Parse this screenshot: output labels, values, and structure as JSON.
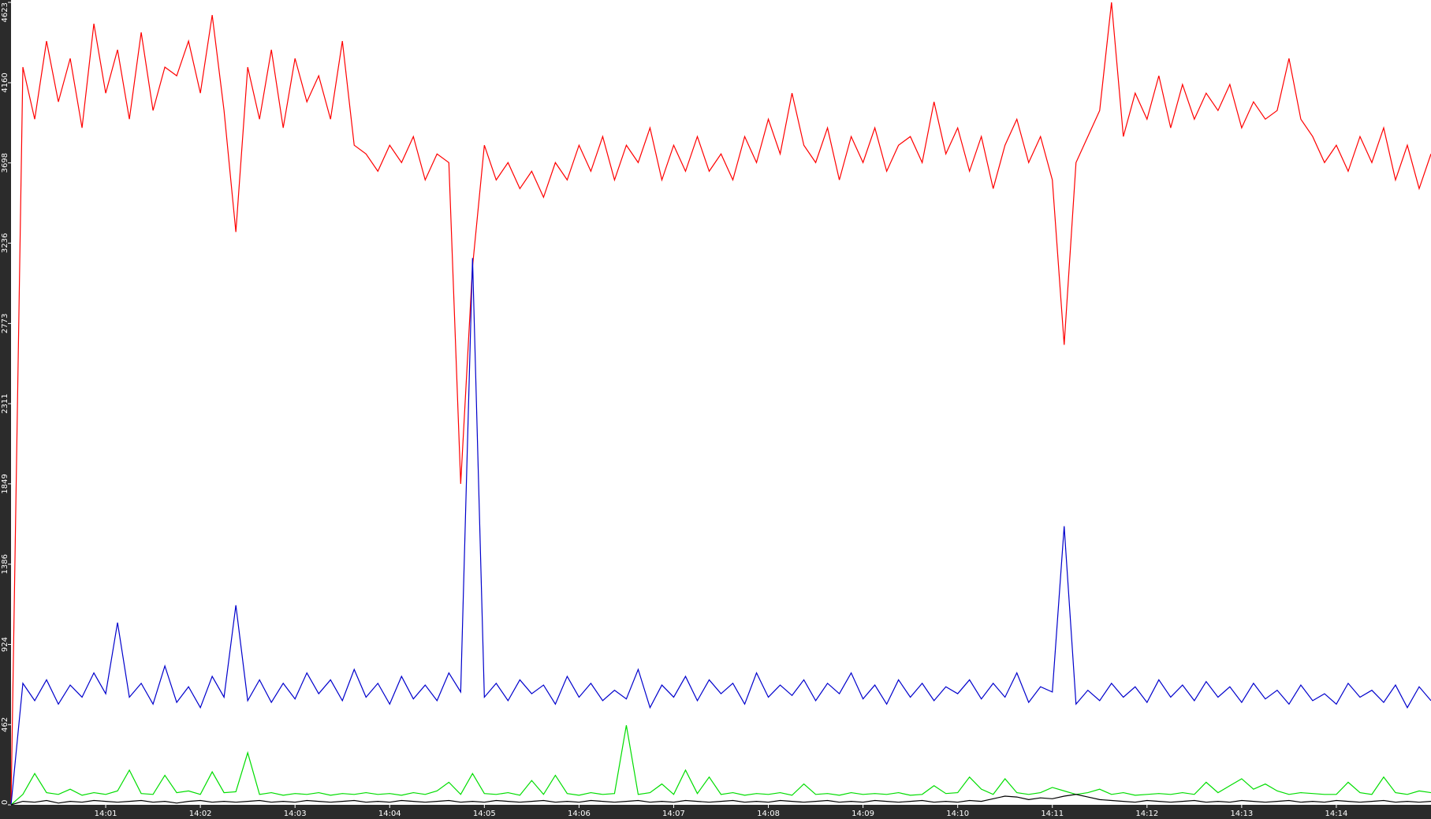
{
  "chart_data": {
    "type": "line",
    "x": [
      0,
      0.125,
      0.25,
      0.375,
      0.5,
      0.625,
      0.75,
      0.875,
      1,
      1.125,
      1.25,
      1.375,
      1.5,
      1.625,
      1.75,
      1.875,
      2,
      2.125,
      2.25,
      2.375,
      2.5,
      2.625,
      2.75,
      2.875,
      3,
      3.125,
      3.25,
      3.375,
      3.5,
      3.625,
      3.75,
      3.875,
      4,
      4.125,
      4.25,
      4.375,
      4.5,
      4.625,
      4.75,
      4.875,
      5,
      5.125,
      5.25,
      5.375,
      5.5,
      5.625,
      5.75,
      5.875,
      6,
      6.125,
      6.25,
      6.375,
      6.5,
      6.625,
      6.75,
      6.875,
      7,
      7.125,
      7.25,
      7.375,
      7.5,
      7.625,
      7.75,
      7.875,
      8,
      8.125,
      8.25,
      8.375,
      8.5,
      8.625,
      8.75,
      8.875,
      9,
      9.125,
      9.25,
      9.375,
      9.5,
      9.625,
      9.75,
      9.875,
      10,
      10.125,
      10.25,
      10.375,
      10.5,
      10.625,
      10.75,
      10.875,
      11,
      11.125,
      11.25,
      11.375,
      11.5,
      11.625,
      11.75,
      11.875,
      12,
      12.125,
      12.25,
      12.375,
      12.5,
      12.625,
      12.75,
      12.875,
      13,
      13.125,
      13.25,
      13.375,
      13.5,
      13.625,
      13.75,
      13.875,
      14,
      14.125,
      14.25,
      14.375,
      14.5,
      14.625,
      14.75,
      14.875,
      15
    ],
    "series": [
      {
        "color": "#ff0000",
        "values": [
          0,
          4250,
          3950,
          4400,
          4050,
          4300,
          3900,
          4500,
          4100,
          4350,
          3950,
          4450,
          4000,
          4250,
          4200,
          4400,
          4100,
          4550,
          4000,
          3300,
          4250,
          3950,
          4350,
          3900,
          4300,
          4050,
          4200,
          3950,
          4400,
          3800,
          3750,
          3650,
          3800,
          3700,
          3850,
          3600,
          3750,
          3700,
          1849,
          3100,
          3800,
          3600,
          3700,
          3550,
          3650,
          3500,
          3700,
          3600,
          3800,
          3650,
          3850,
          3600,
          3800,
          3700,
          3900,
          3600,
          3800,
          3650,
          3850,
          3650,
          3750,
          3600,
          3850,
          3700,
          3950,
          3750,
          4100,
          3800,
          3700,
          3900,
          3600,
          3850,
          3700,
          3900,
          3650,
          3800,
          3850,
          3700,
          4050,
          3750,
          3900,
          3650,
          3850,
          3550,
          3800,
          3950,
          3700,
          3850,
          3600,
          2650,
          3700,
          3850,
          4000,
          4623,
          3850,
          4100,
          3950,
          4200,
          3900,
          4150,
          3950,
          4100,
          4000,
          4150,
          3900,
          4050,
          3950,
          4000,
          4300,
          3950,
          3850,
          3700,
          3800,
          3650,
          3850,
          3700,
          3900,
          3600,
          3800,
          3550,
          3750
        ]
      },
      {
        "color": "#0000cc",
        "values": [
          0,
          700,
          600,
          720,
          580,
          690,
          620,
          760,
          640,
          1050,
          620,
          700,
          580,
          800,
          590,
          680,
          560,
          740,
          620,
          1150,
          600,
          720,
          590,
          700,
          610,
          760,
          640,
          720,
          600,
          780,
          620,
          700,
          580,
          740,
          610,
          690,
          600,
          760,
          650,
          3150,
          620,
          700,
          600,
          720,
          640,
          690,
          580,
          740,
          620,
          700,
          600,
          660,
          610,
          780,
          560,
          690,
          620,
          740,
          600,
          720,
          640,
          700,
          580,
          760,
          620,
          690,
          630,
          720,
          600,
          700,
          640,
          760,
          610,
          690,
          580,
          720,
          620,
          700,
          600,
          680,
          640,
          720,
          610,
          700,
          620,
          760,
          590,
          680,
          650,
          1605,
          580,
          660,
          600,
          700,
          620,
          680,
          590,
          720,
          620,
          690,
          600,
          710,
          620,
          680,
          590,
          700,
          610,
          660,
          580,
          690,
          600,
          640,
          580,
          700,
          620,
          660,
          590,
          690,
          560,
          680,
          600
        ]
      },
      {
        "color": "#00dd00",
        "values": [
          0,
          60,
          180,
          70,
          60,
          90,
          55,
          70,
          60,
          80,
          200,
          65,
          60,
          170,
          70,
          80,
          60,
          190,
          70,
          75,
          300,
          60,
          70,
          55,
          65,
          60,
          70,
          55,
          65,
          60,
          70,
          60,
          65,
          55,
          70,
          60,
          80,
          130,
          60,
          180,
          65,
          60,
          70,
          55,
          140,
          60,
          170,
          65,
          55,
          70,
          60,
          65,
          458,
          60,
          70,
          120,
          60,
          200,
          65,
          160,
          60,
          70,
          55,
          65,
          60,
          70,
          55,
          120,
          60,
          65,
          55,
          70,
          60,
          65,
          60,
          70,
          55,
          60,
          110,
          65,
          70,
          160,
          90,
          60,
          150,
          70,
          60,
          70,
          100,
          80,
          60,
          70,
          90,
          60,
          70,
          55,
          60,
          65,
          60,
          70,
          60,
          130,
          70,
          110,
          150,
          90,
          120,
          80,
          60,
          70,
          65,
          60,
          60,
          130,
          70,
          60,
          160,
          70,
          60,
          80,
          70
        ]
      },
      {
        "color": "#000000",
        "values": [
          0,
          20,
          15,
          25,
          10,
          20,
          15,
          25,
          20,
          15,
          20,
          25,
          15,
          20,
          10,
          20,
          25,
          15,
          20,
          15,
          20,
          25,
          15,
          20,
          15,
          25,
          20,
          15,
          20,
          25,
          15,
          20,
          15,
          25,
          20,
          15,
          20,
          25,
          15,
          20,
          15,
          25,
          20,
          15,
          20,
          25,
          15,
          20,
          15,
          25,
          20,
          15,
          20,
          25,
          15,
          20,
          15,
          25,
          20,
          15,
          20,
          25,
          15,
          20,
          15,
          25,
          20,
          15,
          20,
          25,
          15,
          20,
          15,
          25,
          20,
          15,
          20,
          25,
          15,
          20,
          15,
          25,
          20,
          35,
          50,
          45,
          30,
          40,
          35,
          50,
          60,
          45,
          30,
          25,
          20,
          15,
          25,
          20,
          15,
          20,
          25,
          15,
          20,
          15,
          25,
          20,
          15,
          20,
          25,
          15,
          20,
          15,
          25,
          20,
          15,
          20,
          25,
          15,
          20,
          15,
          20
        ]
      }
    ],
    "xlim": [
      0,
      15
    ],
    "xticks": [
      {
        "value": 1,
        "label": "14:01"
      },
      {
        "value": 2,
        "label": "14:02"
      },
      {
        "value": 3,
        "label": "14:03"
      },
      {
        "value": 4,
        "label": "14:04"
      },
      {
        "value": 5,
        "label": "14:05"
      },
      {
        "value": 6,
        "label": "14:06"
      },
      {
        "value": 7,
        "label": "14:07"
      },
      {
        "value": 8,
        "label": "14:08"
      },
      {
        "value": 9,
        "label": "14:09"
      },
      {
        "value": 10,
        "label": "14:10"
      },
      {
        "value": 11,
        "label": "14:11"
      },
      {
        "value": 12,
        "label": "14:12"
      },
      {
        "value": 13,
        "label": "14:13"
      },
      {
        "value": 14,
        "label": "14:14"
      }
    ],
    "ylim": [
      0,
      4623
    ],
    "yticks": [
      0,
      462,
      924,
      1386,
      1849,
      2311,
      2773,
      3236,
      3698,
      4160,
      4623
    ]
  }
}
